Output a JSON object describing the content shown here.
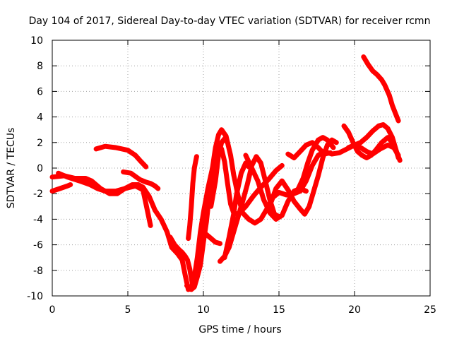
{
  "chart_data": {
    "type": "scatter",
    "title": "Day 104 of 2017, Sidereal Day-to-day VTEC variation (SDTVAR) for receiver rcmn",
    "xlabel": "GPS time / hours",
    "ylabel": "SDTVAR / TECUs",
    "xlim": [
      0,
      25
    ],
    "ylim": [
      -10,
      10
    ],
    "xticks": [
      0,
      5,
      10,
      15,
      20,
      25
    ],
    "yticks": [
      -10,
      -8,
      -6,
      -4,
      -2,
      0,
      2,
      4,
      6,
      8,
      10
    ],
    "grid": true,
    "marker": "+",
    "colors": {
      "series": "#ff0000",
      "grid": "#a0a0a0",
      "axis": "#000000"
    },
    "series": [
      {
        "values": [
          [
            0.0,
            -1.8
          ],
          [
            0.5,
            -1.6
          ],
          [
            1.0,
            -1.4
          ],
          [
            1.2,
            -1.3
          ]
        ]
      },
      {
        "values": [
          [
            0.0,
            -0.7
          ],
          [
            0.8,
            -0.6
          ],
          [
            1.5,
            -0.8
          ],
          [
            2.2,
            -0.8
          ],
          [
            2.6,
            -1.0
          ],
          [
            3.2,
            -1.6
          ],
          [
            3.8,
            -2.0
          ],
          [
            4.3,
            -2.0
          ],
          [
            4.8,
            -1.6
          ],
          [
            5.3,
            -1.3
          ],
          [
            5.7,
            -1.3
          ],
          [
            6.0,
            -1.5
          ],
          [
            6.4,
            -2.2
          ],
          [
            6.8,
            -3.3
          ],
          [
            7.2,
            -4.0
          ],
          [
            7.6,
            -5.0
          ],
          [
            7.9,
            -6.2
          ],
          [
            8.3,
            -6.7
          ],
          [
            8.6,
            -7.2
          ],
          [
            8.8,
            -8.4
          ],
          [
            9.0,
            -9.5
          ],
          [
            9.2,
            -9.4
          ],
          [
            9.4,
            -8.5
          ],
          [
            9.6,
            -7.0
          ],
          [
            9.8,
            -5.0
          ],
          [
            10.0,
            -3.5
          ],
          [
            10.3,
            -1.6
          ],
          [
            10.6,
            0.0
          ],
          [
            10.9,
            1.2
          ],
          [
            11.2,
            1.5
          ],
          [
            11.4,
            0.5
          ],
          [
            11.6,
            -1.2
          ],
          [
            11.8,
            -2.8
          ],
          [
            12.0,
            -3.5
          ],
          [
            12.3,
            -3.6
          ],
          [
            12.8,
            -3.0
          ],
          [
            13.3,
            -2.2
          ],
          [
            13.8,
            -1.5
          ],
          [
            14.3,
            -0.9
          ],
          [
            14.8,
            -0.2
          ],
          [
            15.2,
            0.2
          ]
        ]
      },
      {
        "values": [
          [
            0.4,
            -0.4
          ],
          [
            1.0,
            -0.7
          ],
          [
            1.8,
            -1.0
          ],
          [
            2.5,
            -1.3
          ],
          [
            3.0,
            -1.6
          ],
          [
            3.5,
            -1.8
          ],
          [
            4.2,
            -1.8
          ],
          [
            4.8,
            -1.6
          ],
          [
            5.5,
            -1.4
          ],
          [
            6.0,
            -1.7
          ],
          [
            6.2,
            -2.8
          ],
          [
            6.5,
            -4.5
          ]
        ]
      },
      {
        "values": [
          [
            2.9,
            1.5
          ],
          [
            3.5,
            1.7
          ],
          [
            4.2,
            1.6
          ],
          [
            5.0,
            1.4
          ],
          [
            5.5,
            1.0
          ],
          [
            5.8,
            0.6
          ],
          [
            6.2,
            0.1
          ]
        ]
      },
      {
        "values": [
          [
            4.7,
            -0.3
          ],
          [
            5.2,
            -0.4
          ],
          [
            5.8,
            -0.9
          ],
          [
            6.2,
            -1.1
          ],
          [
            6.5,
            -1.2
          ],
          [
            6.8,
            -1.4
          ],
          [
            7.0,
            -1.6
          ]
        ]
      },
      {
        "values": [
          [
            7.8,
            -5.4
          ],
          [
            8.1,
            -6.0
          ],
          [
            8.4,
            -6.4
          ],
          [
            8.6,
            -6.6
          ],
          [
            8.8,
            -6.9
          ],
          [
            8.95,
            -7.2
          ],
          [
            9.1,
            -7.9
          ],
          [
            9.2,
            -8.6
          ],
          [
            9.3,
            -9.2
          ]
        ]
      },
      {
        "values": [
          [
            9.0,
            -5.5
          ],
          [
            9.1,
            -4.5
          ],
          [
            9.2,
            -3.0
          ],
          [
            9.3,
            -1.2
          ],
          [
            9.4,
            0.0
          ],
          [
            9.5,
            0.6
          ],
          [
            9.55,
            0.9
          ]
        ]
      },
      {
        "values": [
          [
            8.9,
            -9.2
          ],
          [
            9.2,
            -9.5
          ],
          [
            9.4,
            -9.3
          ],
          [
            9.6,
            -8.5
          ],
          [
            9.8,
            -7.6
          ],
          [
            10.0,
            -5.8
          ],
          [
            10.2,
            -4.2
          ],
          [
            10.4,
            -2.0
          ],
          [
            10.6,
            0.0
          ],
          [
            10.8,
            1.6
          ],
          [
            11.0,
            2.6
          ],
          [
            11.2,
            3.0
          ],
          [
            11.5,
            2.5
          ],
          [
            11.8,
            1.0
          ],
          [
            12.0,
            -0.5
          ],
          [
            12.3,
            -2.2
          ],
          [
            12.6,
            -3.5
          ],
          [
            13.0,
            -4.0
          ],
          [
            13.4,
            -4.3
          ],
          [
            13.8,
            -4.0
          ],
          [
            14.2,
            -3.2
          ],
          [
            14.6,
            -2.3
          ],
          [
            15.0,
            -1.9
          ],
          [
            15.5,
            -2.1
          ],
          [
            16.0,
            -2.0
          ],
          [
            16.4,
            -1.8
          ],
          [
            16.8,
            -1.0
          ],
          [
            17.2,
            0.2
          ],
          [
            17.6,
            1.0
          ],
          [
            18.0,
            1.3
          ],
          [
            18.5,
            1.1
          ],
          [
            19.0,
            1.2
          ],
          [
            19.5,
            1.5
          ],
          [
            20.0,
            1.8
          ],
          [
            20.4,
            1.6
          ],
          [
            20.8,
            1.3
          ],
          [
            21.2,
            1.1
          ],
          [
            21.7,
            1.5
          ],
          [
            22.2,
            1.8
          ],
          [
            22.6,
            1.6
          ],
          [
            22.9,
            1.0
          ]
        ]
      },
      {
        "values": [
          [
            10.0,
            -5.0
          ],
          [
            10.4,
            -5.4
          ],
          [
            10.8,
            -5.8
          ],
          [
            11.1,
            -5.9
          ]
        ]
      },
      {
        "values": [
          [
            10.5,
            -3.0
          ],
          [
            10.8,
            -1.0
          ],
          [
            11.0,
            1.0
          ],
          [
            11.2,
            2.0
          ],
          [
            11.4,
            2.3
          ],
          [
            11.6,
            2.0
          ]
        ]
      },
      {
        "values": [
          [
            11.1,
            -7.3
          ],
          [
            11.4,
            -6.9
          ],
          [
            11.7,
            -6.2
          ],
          [
            12.0,
            -5.0
          ],
          [
            12.3,
            -3.8
          ],
          [
            12.6,
            -2.6
          ],
          [
            12.9,
            -1.3
          ],
          [
            13.2,
            0.2
          ],
          [
            13.5,
            0.9
          ],
          [
            13.8,
            0.4
          ],
          [
            14.1,
            -1.0
          ],
          [
            14.4,
            -2.5
          ],
          [
            14.7,
            -3.6
          ],
          [
            15.0,
            -3.8
          ]
        ]
      },
      {
        "values": [
          [
            11.4,
            -7.0
          ],
          [
            11.7,
            -5.4
          ],
          [
            12.0,
            -3.6
          ],
          [
            12.2,
            -2.0
          ],
          [
            12.5,
            -0.4
          ],
          [
            12.8,
            0.4
          ],
          [
            13.0,
            0.1
          ]
        ]
      },
      {
        "values": [
          [
            12.8,
            1.0
          ],
          [
            13.2,
            0.0
          ],
          [
            13.6,
            -1.0
          ],
          [
            14.0,
            -2.5
          ],
          [
            14.4,
            -3.5
          ],
          [
            14.8,
            -4.0
          ],
          [
            15.2,
            -3.7
          ],
          [
            15.6,
            -2.6
          ],
          [
            16.0,
            -1.8
          ],
          [
            16.4,
            -1.6
          ],
          [
            16.8,
            -1.8
          ]
        ]
      },
      {
        "values": [
          [
            14.5,
            -2.6
          ],
          [
            14.8,
            -1.6
          ],
          [
            15.2,
            -1.0
          ],
          [
            15.6,
            -1.7
          ],
          [
            16.0,
            -2.6
          ],
          [
            16.4,
            -3.2
          ],
          [
            16.7,
            -3.6
          ],
          [
            17.0,
            -3.0
          ],
          [
            17.3,
            -1.8
          ],
          [
            17.6,
            -0.6
          ],
          [
            17.9,
            0.8
          ],
          [
            18.2,
            1.8
          ],
          [
            18.5,
            2.2
          ],
          [
            18.8,
            2.0
          ]
        ]
      },
      {
        "values": [
          [
            15.6,
            1.1
          ],
          [
            16.0,
            0.8
          ],
          [
            16.4,
            1.3
          ],
          [
            16.8,
            1.8
          ],
          [
            17.2,
            2.0
          ],
          [
            17.6,
            1.6
          ],
          [
            18.0,
            1.1
          ],
          [
            18.4,
            1.2
          ]
        ]
      },
      {
        "values": [
          [
            16.2,
            -1.8
          ],
          [
            16.6,
            -0.8
          ],
          [
            16.9,
            0.4
          ],
          [
            17.2,
            1.4
          ],
          [
            17.6,
            2.2
          ],
          [
            17.9,
            2.4
          ],
          [
            18.2,
            2.2
          ],
          [
            18.6,
            1.6
          ]
        ]
      },
      {
        "values": [
          [
            19.3,
            3.3
          ],
          [
            19.6,
            2.8
          ],
          [
            19.9,
            2.0
          ],
          [
            20.2,
            1.3
          ],
          [
            20.5,
            1.0
          ],
          [
            20.8,
            0.8
          ],
          [
            21.1,
            1.0
          ],
          [
            21.4,
            1.4
          ],
          [
            21.8,
            2.0
          ],
          [
            22.2,
            2.4
          ],
          [
            22.5,
            2.0
          ],
          [
            22.8,
            1.2
          ],
          [
            23.0,
            0.6
          ]
        ]
      },
      {
        "values": [
          [
            19.6,
            1.6
          ],
          [
            20.0,
            1.8
          ],
          [
            20.4,
            2.0
          ],
          [
            20.8,
            2.4
          ],
          [
            21.2,
            2.9
          ],
          [
            21.6,
            3.3
          ],
          [
            21.9,
            3.4
          ],
          [
            22.2,
            3.1
          ],
          [
            22.5,
            2.4
          ],
          [
            22.7,
            1.6
          ],
          [
            22.9,
            0.8
          ]
        ]
      },
      {
        "values": [
          [
            20.6,
            8.7
          ],
          [
            20.9,
            8.1
          ],
          [
            21.2,
            7.6
          ],
          [
            21.5,
            7.3
          ],
          [
            21.8,
            6.9
          ],
          [
            22.0,
            6.5
          ],
          [
            22.3,
            5.7
          ],
          [
            22.5,
            4.9
          ],
          [
            22.7,
            4.3
          ],
          [
            22.9,
            3.7
          ]
        ]
      }
    ]
  }
}
